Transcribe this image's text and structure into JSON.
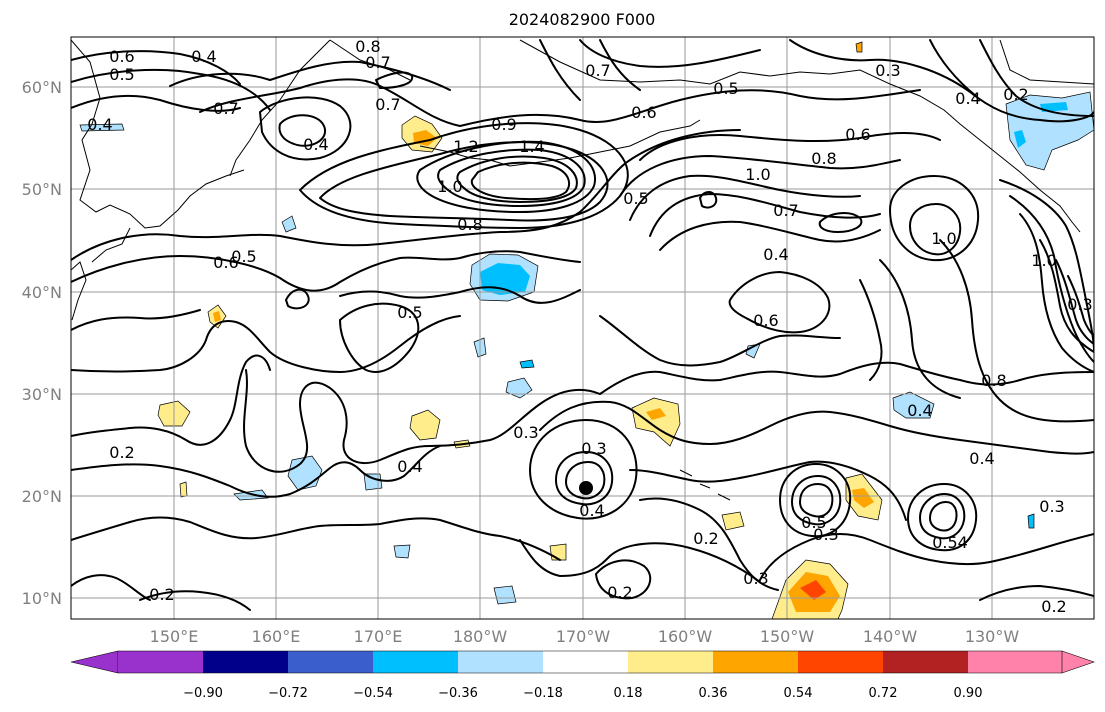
{
  "title": "2024082900 F000",
  "lat_labels": [
    "60°N",
    "50°N",
    "40°N",
    "30°N",
    "20°N",
    "10°N"
  ],
  "lon_labels": [
    "150°E",
    "160°E",
    "170°E",
    "180°W",
    "170°W",
    "160°W",
    "150°W",
    "140°W",
    "130°W"
  ],
  "colorbar": {
    "ticks": [
      "−0.90",
      "−0.72",
      "−0.54",
      "−0.36",
      "−0.18",
      "0.18",
      "0.36",
      "0.54",
      "0.72",
      "0.90"
    ],
    "colors": [
      "#9932CC",
      "#00008B",
      "#3A5FCD",
      "#00BFFF",
      "#B0E2FF",
      "#FFFFFF",
      "#FFEC8B",
      "#FFA500",
      "#FF4500",
      "#B22222",
      "#FF82AB"
    ]
  },
  "contour_labels": [
    {
      "text": "0.6"
    },
    {
      "text": "0.4"
    },
    {
      "text": "0.8"
    },
    {
      "text": "0.5"
    },
    {
      "text": "0.7"
    },
    {
      "text": "0.4"
    },
    {
      "text": "0.7"
    },
    {
      "text": "0.4"
    },
    {
      "text": "0.7"
    },
    {
      "text": "0.9"
    },
    {
      "text": "1.2"
    },
    {
      "text": "1.4"
    },
    {
      "text": "1.0"
    },
    {
      "text": "0.8"
    },
    {
      "text": "0.7"
    },
    {
      "text": "0.6"
    },
    {
      "text": "0.5"
    },
    {
      "text": "0.3"
    },
    {
      "text": "0.4"
    },
    {
      "text": "0.2"
    },
    {
      "text": "0.6"
    },
    {
      "text": "0.8"
    },
    {
      "text": "1.0"
    },
    {
      "text": "0.7"
    },
    {
      "text": "0.5"
    },
    {
      "text": "0.4"
    },
    {
      "text": "0.6"
    },
    {
      "text": "1.0"
    },
    {
      "text": "1.0"
    },
    {
      "text": "0.3"
    },
    {
      "text": "0.6"
    },
    {
      "text": "0.5"
    },
    {
      "text": "0.5"
    },
    {
      "text": "0.8"
    },
    {
      "text": "0.4"
    },
    {
      "text": "0.4"
    },
    {
      "text": "0.2"
    },
    {
      "text": "0.3"
    },
    {
      "text": "0.3"
    },
    {
      "text": "0.4"
    },
    {
      "text": "0.4"
    },
    {
      "text": "0.2"
    },
    {
      "text": "0.2"
    },
    {
      "text": "0.5"
    },
    {
      "text": "0.3"
    },
    {
      "text": "0.3"
    },
    {
      "text": "0.54"
    },
    {
      "text": "0.3"
    },
    {
      "text": "0.2"
    },
    {
      "text": "0.2"
    }
  ]
}
